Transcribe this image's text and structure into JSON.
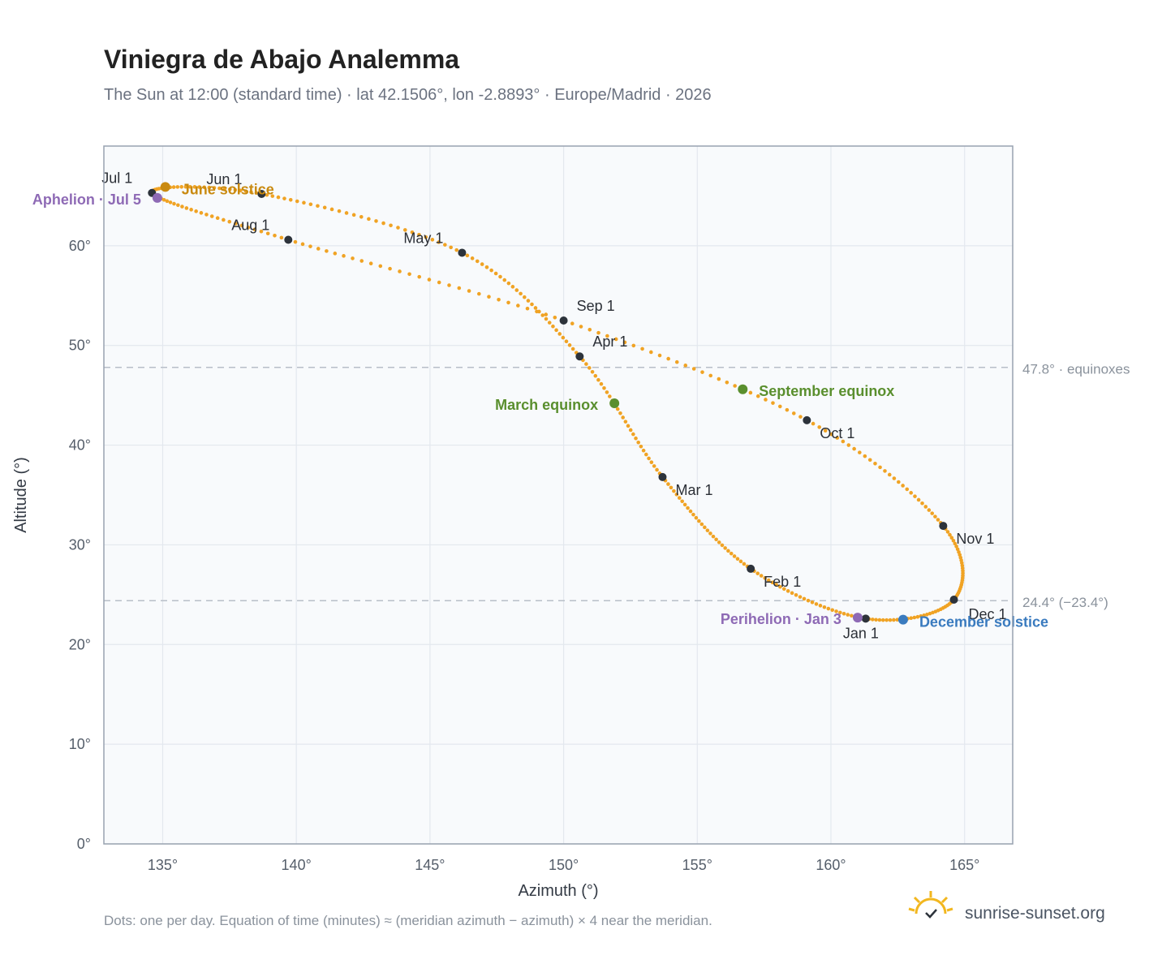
{
  "header": {
    "title": "Viniegra de Abajo Analemma",
    "subtitle": "The Sun at 12:00 (standard time) · lat 42.1506°, lon -2.8893° · Europe/Madrid · 2026"
  },
  "footer": {
    "note": "Dots: one per day. Equation of time (minutes) ≈ (meridian azimuth − azimuth) × 4 near the meridian.",
    "brand": "sunrise-sunset.org"
  },
  "colors": {
    "path": "#f0a324",
    "month_marker": "#2d333b",
    "solstice_june": "#c98a10",
    "solstice_december": "#3a7bbf",
    "equinox": "#5a8f2e",
    "apsis": "#8e6ab5",
    "grid": "#e3e8ee",
    "plot_bg": "#f8fafc",
    "frame": "#98a2b0",
    "ref_line": "#b8bfc8"
  },
  "chart_data": {
    "type": "scatter",
    "xlabel": "Azimuth (°)",
    "ylabel": "Altitude (°)",
    "xlim": [
      132.8,
      166.8
    ],
    "ylim": [
      0,
      70
    ],
    "xticks": [
      135,
      140,
      145,
      150,
      155,
      160,
      165
    ],
    "yticks": [
      0,
      10,
      20,
      30,
      40,
      50,
      60
    ],
    "xtick_labels": [
      "135°",
      "140°",
      "145°",
      "150°",
      "155°",
      "160°",
      "165°"
    ],
    "ytick_labels": [
      "0°",
      "10°",
      "20°",
      "30°",
      "40°",
      "50°",
      "60°"
    ],
    "grid": true,
    "reference_lines": [
      {
        "y": 47.8,
        "label": "47.8° · equinoxes"
      },
      {
        "y": 24.4,
        "label": "24.4° (−23.4°)"
      }
    ],
    "daily_path": {
      "description": "one dot per day",
      "months": [
        {
          "label": "Jan 1",
          "azimuth": 161.3,
          "altitude": 22.6
        },
        {
          "label": "Feb 1",
          "azimuth": 157.0,
          "altitude": 27.6
        },
        {
          "label": "Mar 1",
          "azimuth": 153.7,
          "altitude": 36.8
        },
        {
          "label": "Apr 1",
          "azimuth": 150.6,
          "altitude": 48.9
        },
        {
          "label": "May 1",
          "azimuth": 146.2,
          "altitude": 59.3
        },
        {
          "label": "Jun 1",
          "azimuth": 138.7,
          "altitude": 65.2
        },
        {
          "label": "Jul 1",
          "azimuth": 134.6,
          "altitude": 65.3
        },
        {
          "label": "Aug 1",
          "azimuth": 139.7,
          "altitude": 60.6
        },
        {
          "label": "Sep 1",
          "azimuth": 150.0,
          "altitude": 52.5
        },
        {
          "label": "Oct 1",
          "azimuth": 159.1,
          "altitude": 42.5
        },
        {
          "label": "Nov 1",
          "azimuth": 164.2,
          "altitude": 31.9
        },
        {
          "label": "Dec 1",
          "azimuth": 164.6,
          "altitude": 24.5
        }
      ]
    },
    "events": [
      {
        "label": "June solstice",
        "azimuth": 135.1,
        "altitude": 65.9,
        "color": "#c98a10"
      },
      {
        "label": "December solstice",
        "azimuth": 162.7,
        "altitude": 22.5,
        "color": "#3a7bbf"
      },
      {
        "label": "March equinox",
        "azimuth": 151.9,
        "altitude": 44.2,
        "color": "#5a8f2e"
      },
      {
        "label": "September equinox",
        "azimuth": 156.7,
        "altitude": 45.6,
        "color": "#5a8f2e"
      },
      {
        "label": "Aphelion · Jul 5",
        "azimuth": 134.8,
        "altitude": 64.8,
        "color": "#8e6ab5"
      },
      {
        "label": "Perihelion · Jan 3",
        "azimuth": 161.0,
        "altitude": 22.7,
        "color": "#8e6ab5"
      }
    ]
  }
}
